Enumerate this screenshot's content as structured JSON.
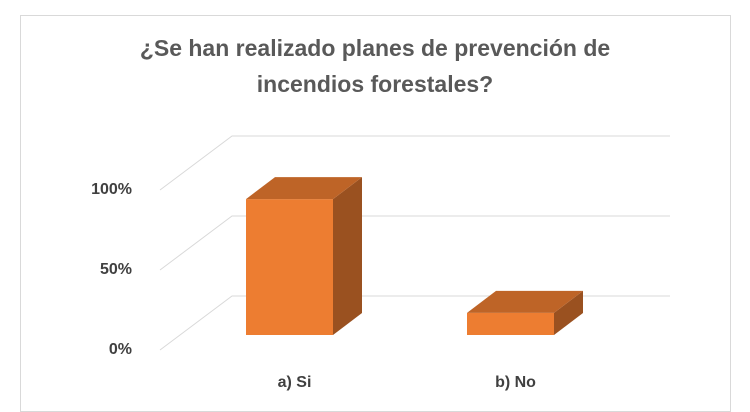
{
  "chart_data": {
    "type": "bar3d",
    "title": "¿Se han realizado planes de prevención de incendios forestales?",
    "categories": [
      "a) Si",
      "b) No"
    ],
    "values": [
      86,
      14
    ],
    "color": "#ed7d31",
    "ylim": [
      0,
      100
    ],
    "yticks": [
      {
        "value": 0,
        "label": "0%"
      },
      {
        "value": 50,
        "label": "50%"
      },
      {
        "value": 100,
        "label": "100%"
      }
    ],
    "grid": true
  }
}
